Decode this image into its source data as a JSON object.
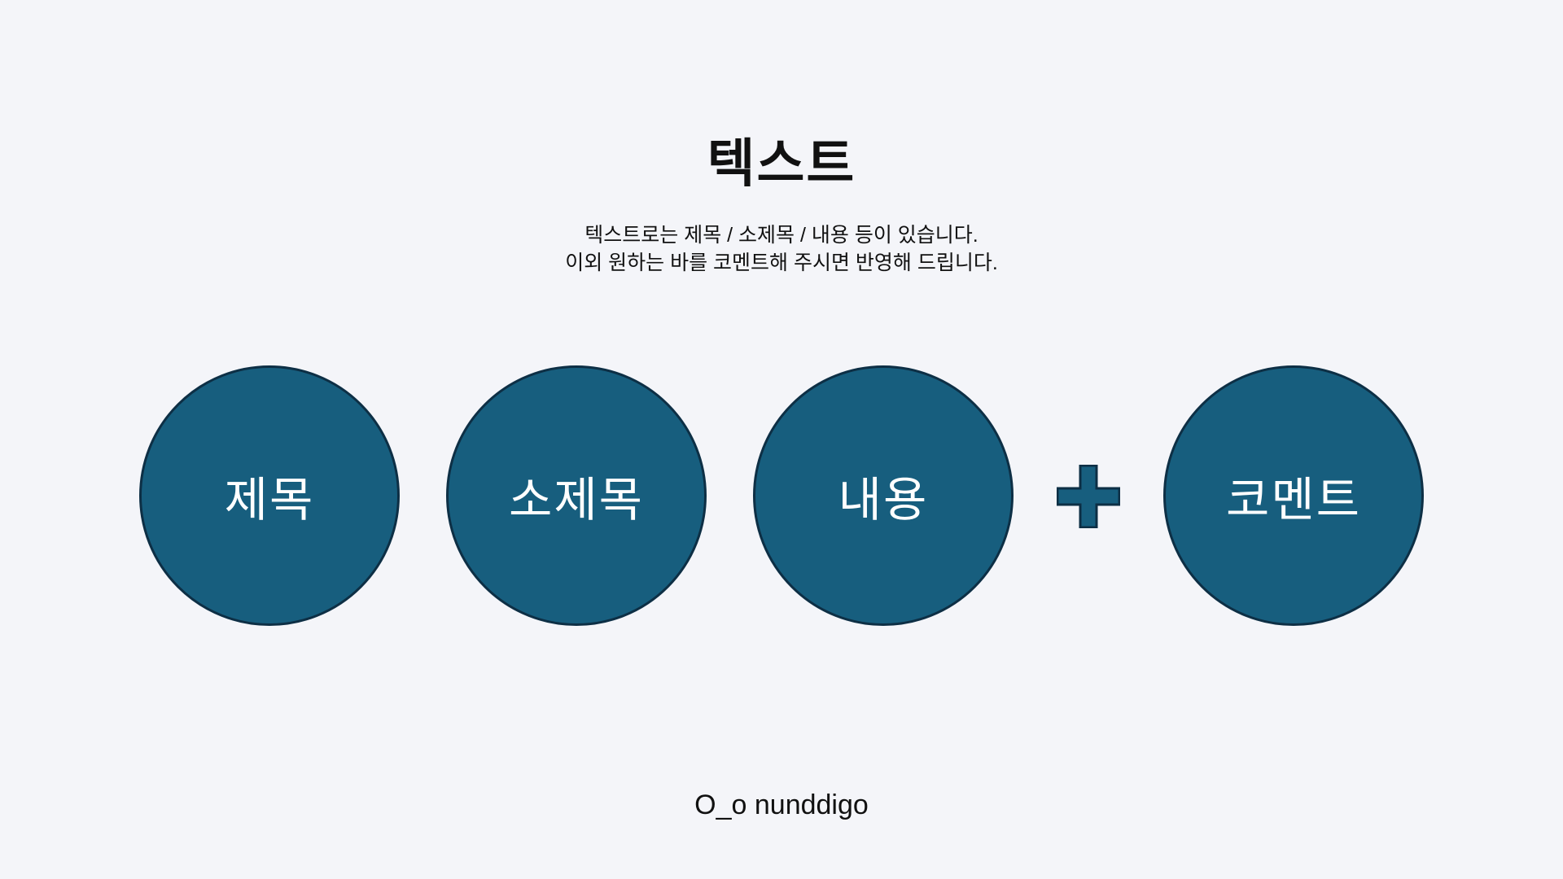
{
  "title": "텍스트",
  "description": {
    "line1": "텍스트로는 제목 / 소제목 / 내용 등이 있습니다.",
    "line2": "이외 원하는 바를 코멘트해 주시면 반영해 드립니다."
  },
  "items": [
    {
      "label": "제목"
    },
    {
      "label": "소제목"
    },
    {
      "label": "내용"
    },
    {
      "label": "코멘트"
    }
  ],
  "plus_icon": "plus-icon",
  "footer": {
    "logo": "O_o nunddigo"
  },
  "colors": {
    "background": "#f4f5f9",
    "circle_fill": "#175e7e",
    "circle_stroke": "#0d2f45"
  }
}
